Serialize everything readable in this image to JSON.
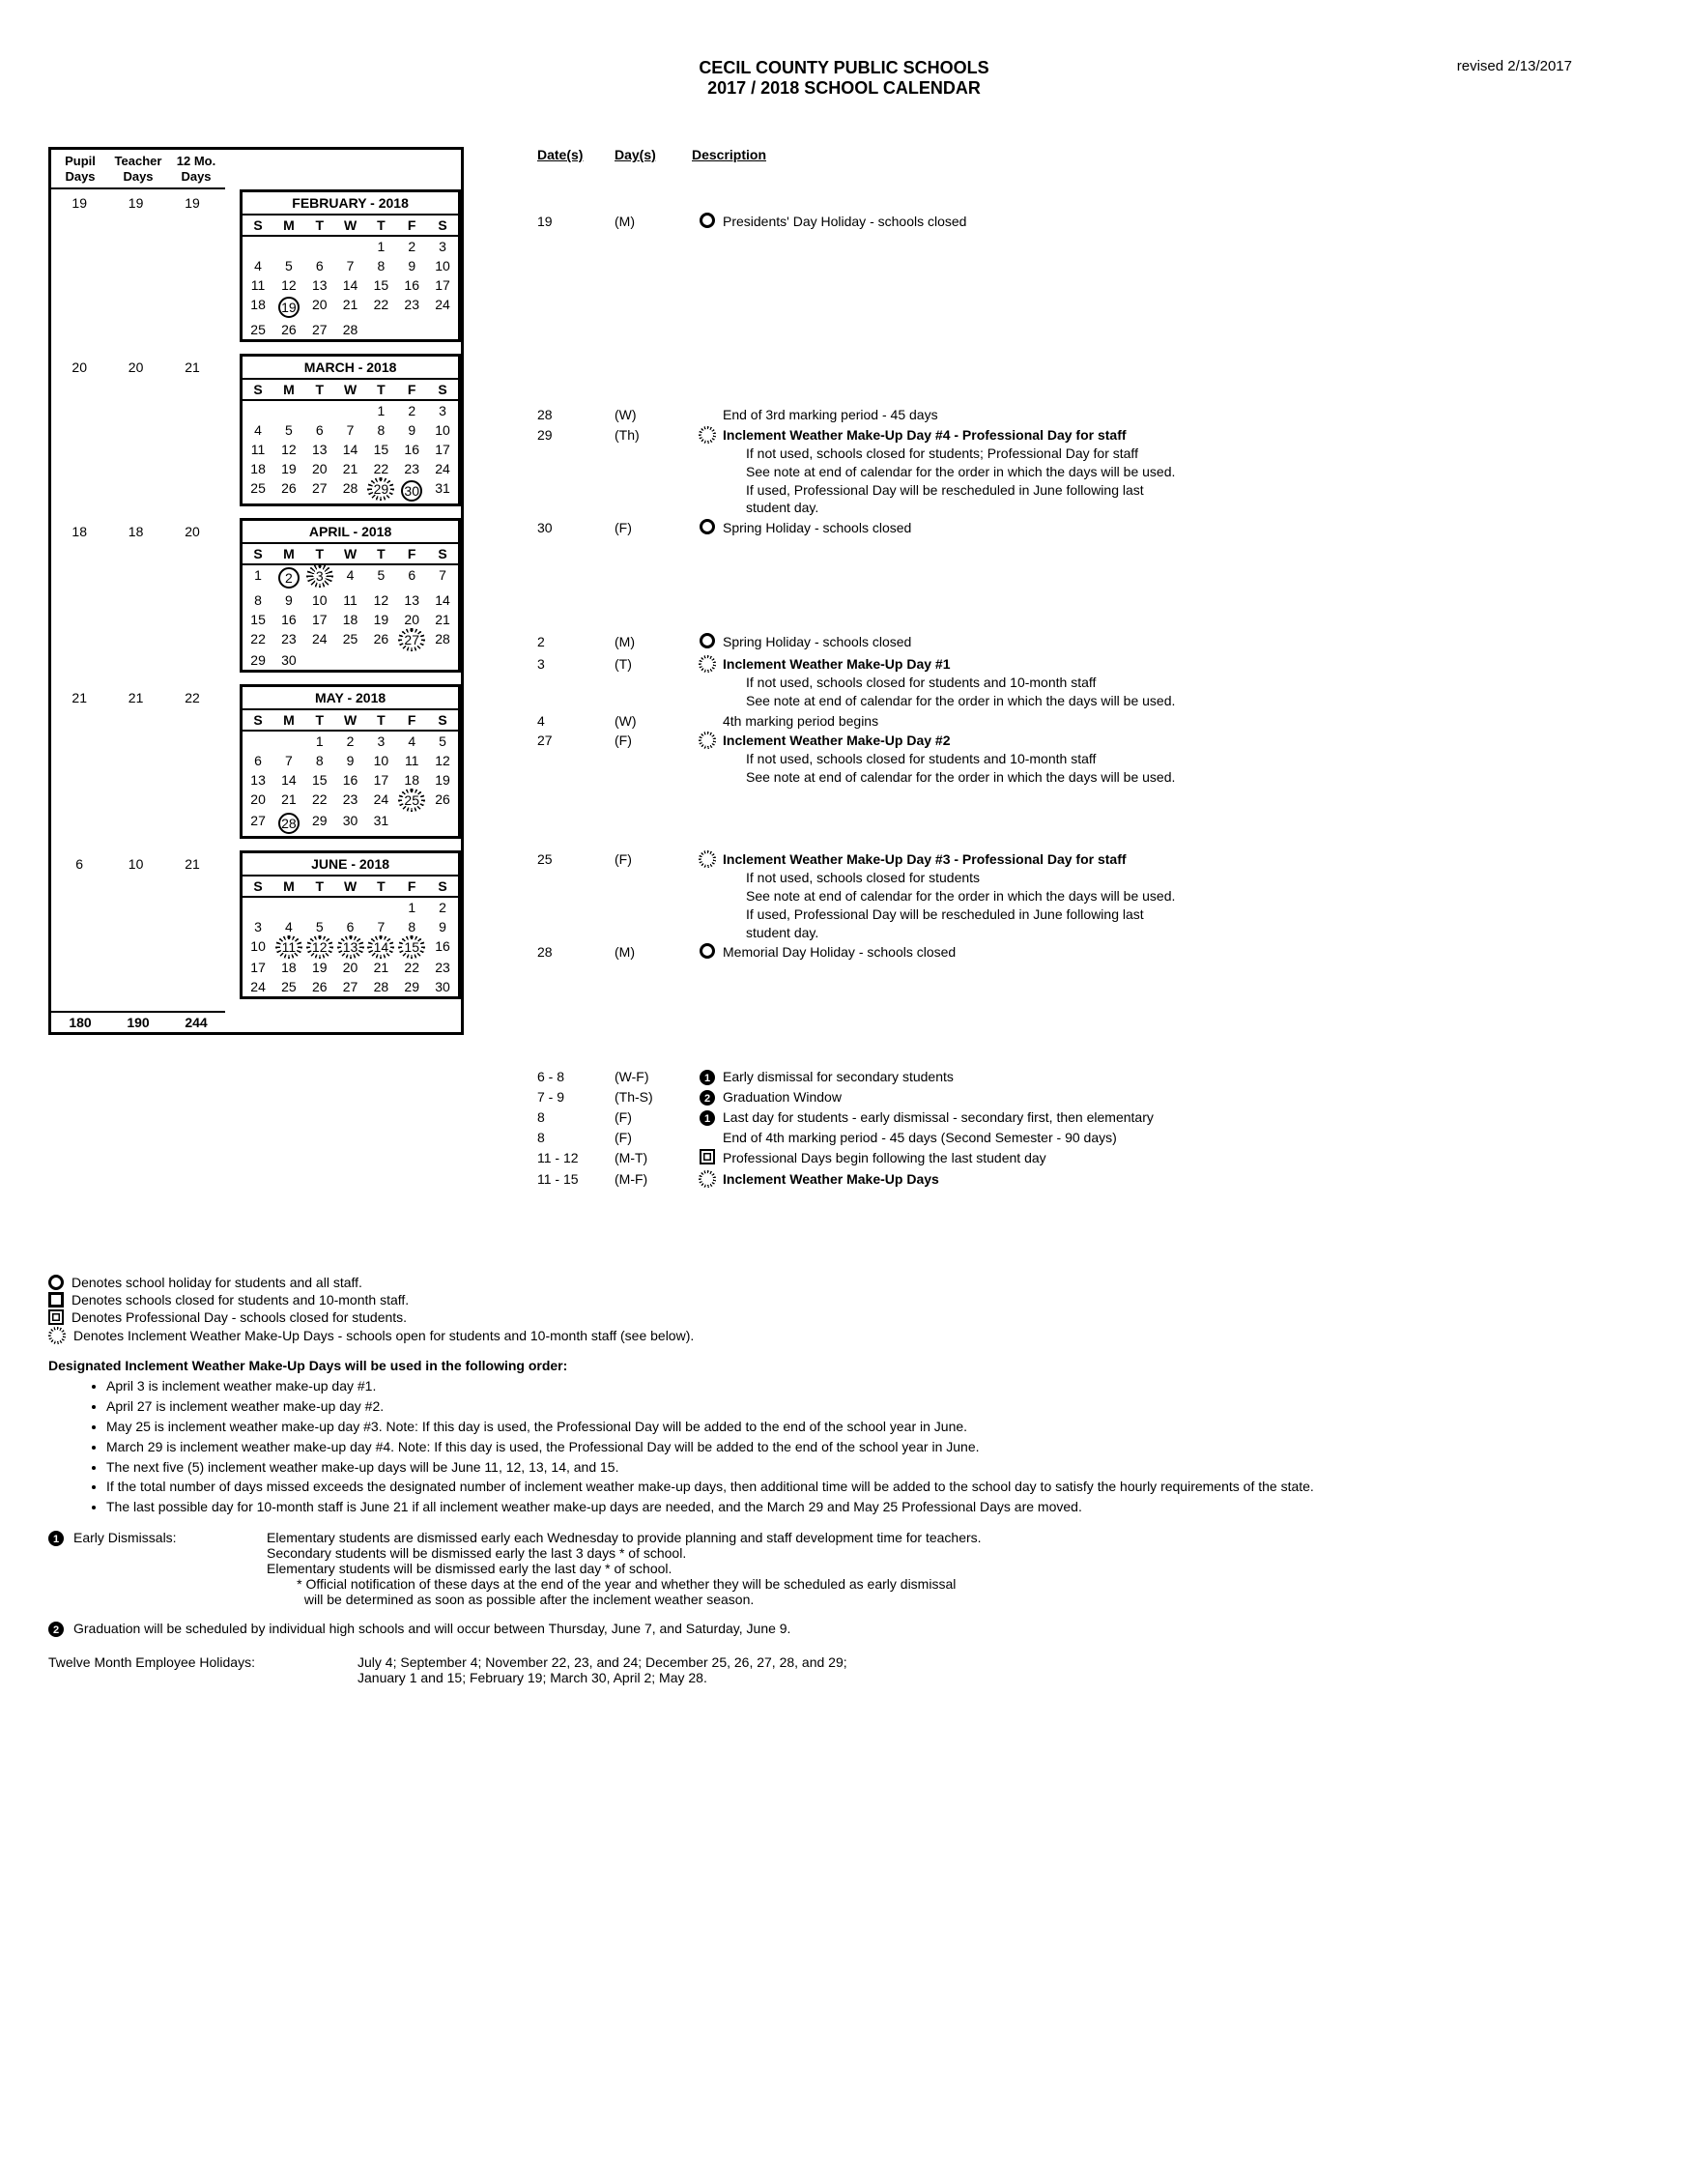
{
  "header": {
    "line1": "CECIL  COUNTY PUBLIC  SCHOOLS",
    "line2": "2017 / 2018  SCHOOL  CALENDAR",
    "revised": "revised 2/13/2017"
  },
  "days_header": {
    "c1": "Pupil\nDays",
    "c2": "Teacher\nDays",
    "c3": "12 Mo.\nDays"
  },
  "totals": {
    "pupil": "180",
    "teacher": "190",
    "twelve": "244"
  },
  "event_header": {
    "dates": "Date(s)",
    "days": "Day(s)",
    "desc": "Description"
  },
  "dow": [
    "S",
    "M",
    "T",
    "W",
    "T",
    "F",
    "S"
  ],
  "months": [
    {
      "title": "FEBRUARY - 2018",
      "days": {
        "pupil": "19",
        "teacher": "19",
        "twelve": "19"
      },
      "weeks": [
        [
          "",
          "",
          "",
          "",
          "1",
          "2",
          "3"
        ],
        [
          "4",
          "5",
          "6",
          "7",
          "8",
          "9",
          "10"
        ],
        [
          "11",
          "12",
          "13",
          "14",
          "15",
          "16",
          "17"
        ],
        [
          "18",
          "19",
          "20",
          "21",
          "22",
          "23",
          "24"
        ],
        [
          "25",
          "26",
          "27",
          "28",
          "",
          "",
          ""
        ]
      ],
      "marks": {
        "19": "circle"
      },
      "events": [
        {
          "date": "19",
          "day": "(M)",
          "sym": "circle",
          "desc": "Presidents' Day Holiday - schools closed"
        }
      ]
    },
    {
      "title": "MARCH - 2018",
      "days": {
        "pupil": "20",
        "teacher": "20",
        "twelve": "21"
      },
      "weeks": [
        [
          "",
          "",
          "",
          "",
          "1",
          "2",
          "3"
        ],
        [
          "4",
          "5",
          "6",
          "7",
          "8",
          "9",
          "10"
        ],
        [
          "11",
          "12",
          "13",
          "14",
          "15",
          "16",
          "17"
        ],
        [
          "18",
          "19",
          "20",
          "21",
          "22",
          "23",
          "24"
        ],
        [
          "25",
          "26",
          "27",
          "28",
          "29",
          "30",
          "31"
        ]
      ],
      "marks": {
        "29": "burst",
        "30": "circle"
      },
      "events": [
        {
          "date": "28",
          "day": "(W)",
          "sym": "",
          "desc": "End of 3rd marking period - 45 days"
        },
        {
          "date": "29",
          "day": "(Th)",
          "sym": "burst",
          "desc": "<b>Inclement Weather Make-Up Day #4 - Professional Day for staff</b>",
          "sub": [
            "If not used, schools closed for students; Professional Day for staff",
            "See note at end of calendar for the order in which the days will be used.",
            "If used, Professional Day will be rescheduled in June following last",
            "student day."
          ]
        },
        {
          "date": "30",
          "day": "(F)",
          "sym": "circle",
          "desc": "Spring Holiday - schools closed"
        }
      ]
    },
    {
      "title": "APRIL - 2018",
      "days": {
        "pupil": "18",
        "teacher": "18",
        "twelve": "20"
      },
      "weeks": [
        [
          "1",
          "2",
          "3",
          "4",
          "5",
          "6",
          "7"
        ],
        [
          "8",
          "9",
          "10",
          "11",
          "12",
          "13",
          "14"
        ],
        [
          "15",
          "16",
          "17",
          "18",
          "19",
          "20",
          "21"
        ],
        [
          "22",
          "23",
          "24",
          "25",
          "26",
          "27",
          "28"
        ],
        [
          "29",
          "30",
          "",
          "",
          "",
          "",
          ""
        ]
      ],
      "marks": {
        "2": "circle",
        "3": "burst",
        "27": "burst"
      },
      "events": [
        {
          "date": "2",
          "day": "(M)",
          "sym": "circle",
          "desc": "Spring Holiday - schools closed"
        },
        {
          "date": "3",
          "day": "(T)",
          "sym": "burst",
          "desc": "<b>Inclement Weather Make-Up Day #1</b>",
          "sub": [
            "If not used, schools closed for students and 10-month staff",
            "See note at end of calendar for the order in which the days will be used."
          ]
        },
        {
          "date": "4",
          "day": "(W)",
          "sym": "",
          "desc": "4th marking period begins"
        },
        {
          "date": "27",
          "day": "(F)",
          "sym": "burst",
          "desc": "<b>Inclement Weather Make-Up Day #2</b>",
          "sub": [
            "If not used, schools closed for students and 10-month staff",
            "See note at end of calendar for the order in which the days will be used."
          ]
        }
      ]
    },
    {
      "title": "MAY - 2018",
      "days": {
        "pupil": "21",
        "teacher": "21",
        "twelve": "22"
      },
      "weeks": [
        [
          "",
          "",
          "1",
          "2",
          "3",
          "4",
          "5"
        ],
        [
          "6",
          "7",
          "8",
          "9",
          "10",
          "11",
          "12"
        ],
        [
          "13",
          "14",
          "15",
          "16",
          "17",
          "18",
          "19"
        ],
        [
          "20",
          "21",
          "22",
          "23",
          "24",
          "25",
          "26"
        ],
        [
          "27",
          "28",
          "29",
          "30",
          "31",
          "",
          ""
        ]
      ],
      "marks": {
        "25": "burst",
        "28": "circle"
      },
      "events": [
        {
          "date": "25",
          "day": "(F)",
          "sym": "burst",
          "desc": "<b>Inclement Weather Make-Up Day #3 - Professional Day for staff</b>",
          "sub": [
            "If not used, schools closed for students",
            "See note at end of calendar for the order in which the days will be used.",
            "If used, Professional Day will be rescheduled in June following last",
            "student day."
          ]
        },
        {
          "date": "28",
          "day": "(M)",
          "sym": "circle",
          "desc": "Memorial Day Holiday - schools closed"
        }
      ]
    },
    {
      "title": "JUNE - 2018",
      "days": {
        "pupil": "6",
        "teacher": "10",
        "twelve": "21"
      },
      "weeks": [
        [
          "",
          "",
          "",
          "",
          "",
          "1",
          "2"
        ],
        [
          "3",
          "4",
          "5",
          "6",
          "7",
          "8",
          "9"
        ],
        [
          "10",
          "11",
          "12",
          "13",
          "14",
          "15",
          "16"
        ],
        [
          "17",
          "18",
          "19",
          "20",
          "21",
          "22",
          "23"
        ],
        [
          "24",
          "25",
          "26",
          "27",
          "28",
          "29",
          "30"
        ]
      ],
      "marks": {
        "11": "burst",
        "12": "burst",
        "13": "burst",
        "14": "burst",
        "15": "burst"
      },
      "events": [
        {
          "date": "6 - 8",
          "day": "(W-F)",
          "sym": "num1",
          "desc": "Early dismissal for secondary students"
        },
        {
          "date": "7 - 9",
          "day": "(Th-S)",
          "sym": "num2",
          "desc": "Graduation Window"
        },
        {
          "date": "8",
          "day": "(F)",
          "sym": "num1",
          "desc": "Last day for students - early dismissal - secondary first, then elementary"
        },
        {
          "date": "8",
          "day": "(F)",
          "sym": "",
          "desc": "End of 4th marking period - 45 days (Second Semester - 90 days)"
        },
        {
          "date": "11 - 12",
          "day": "(M-T)",
          "sym": "dsq",
          "desc": "Professional Days begin following the last student day"
        },
        {
          "date": "11 - 15",
          "day": "(M-F)",
          "sym": "burst",
          "desc": "<b>Inclement Weather Make-Up Days</b>"
        }
      ]
    }
  ],
  "legend": [
    {
      "sym": "circle",
      "text": "Denotes school holiday for students and all staff."
    },
    {
      "sym": "square",
      "text": "Denotes schools closed for students and 10-month staff."
    },
    {
      "sym": "dsq",
      "text": "Denotes Professional Day - schools closed for students."
    },
    {
      "sym": "burst",
      "text": "Denotes Inclement Weather Make-Up Days - schools open for students and 10-month staff (see below)."
    }
  ],
  "notes_title": "Designated Inclement Weather Make-Up Days will be used in the following order:",
  "notes": [
    "April 3 is inclement weather make-up day #1.",
    "April 27 is inclement weather make-up day #2.",
    "May 25 is inclement weather make-up day #3.           Note:   If this day is used, the Professional Day will be added to the end of the school year in June.",
    "March 29 is inclement weather make-up day #4.        Note:   If this day is used, the Professional Day will be added to the end of the school year in June.",
    "The next five (5) inclement weather make-up days will be June 11, 12, 13, 14, and 15.",
    "If the total number of days missed exceeds the designated number of inclement weather make-up days, then additional time will be added to the school day to satisfy the hourly requirements of the state.",
    "The last possible day for 10-month staff is June 21 if all inclement weather make-up days are needed, and the March 29 and May 25 Professional Days are moved."
  ],
  "footnote1": {
    "label": "Early Dismissals:",
    "lines": [
      "Elementary students are dismissed early each Wednesday to provide planning and staff development time for teachers.",
      "Secondary students will be dismissed early the last 3 days * of school.",
      "Elementary students will be dismissed early the last day * of school.",
      "        * Official notification of these days at the end of the year and whether they will be scheduled as early dismissal",
      "          will be determined as soon as possible after the inclement weather season."
    ]
  },
  "footnote2": "Graduation will be scheduled by individual high schools and will occur between Thursday, June 7, and Saturday, June 9.",
  "bottom": {
    "label": "Twelve Month Employee Holidays:",
    "text": "July 4; September 4; November 22, 23, and 24; December 25, 26, 27, 28, and 29;\nJanuary 1 and 15; February 19; March 30, April 2; May 28."
  }
}
